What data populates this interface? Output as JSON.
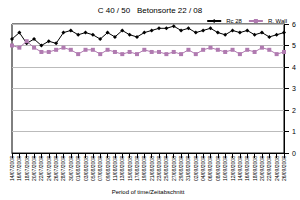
{
  "chart_data": {
    "type": "line",
    "title": "C 40 / 50   Betonsorte 22 / 08",
    "x_label": "Period of time/Zeitabschnitt",
    "categories": [
      "14/07/2008",
      "16/07/2008",
      "18/07/2008",
      "20/07/2008",
      "22/07/2008",
      "24/07/2008",
      "26/07/2008",
      "28/07/2008",
      "30/07/2008",
      "01/08/2008",
      "03/08/2008",
      "05/08/2008",
      "07/08/2008",
      "09/08/2008",
      "11/08/2008",
      "13/08/2008",
      "15/08/2008",
      "17/08/2008",
      "19/08/2008",
      "21/08/2008",
      "23/08/2008",
      "25/08/2008",
      "27/08/2008",
      "29/08/2008",
      "31/08/2008",
      "02/09/2008",
      "04/09/2008",
      "06/09/2008",
      "08/09/2008",
      "10/09/2008",
      "12/09/2008",
      "14/09/2008",
      "16/09/2008",
      "18/09/2008",
      "20/09/2008",
      "22/09/2008",
      "24/09/2008",
      "26/09/2008"
    ],
    "series": [
      {
        "name": "Rc 28",
        "color": "#000000",
        "marker": "diamond",
        "values": [
          5.3,
          5.6,
          5.1,
          5.3,
          5.0,
          5.2,
          5.1,
          5.6,
          5.7,
          5.5,
          5.6,
          5.5,
          5.3,
          5.6,
          5.4,
          5.7,
          5.5,
          5.4,
          5.6,
          5.7,
          5.8,
          5.8,
          5.9,
          5.7,
          5.8,
          5.6,
          5.7,
          5.8,
          5.6,
          5.5,
          5.7,
          5.6,
          5.7,
          5.5,
          5.6,
          5.4,
          5.5,
          5.6
        ]
      },
      {
        "name": "R. Wall",
        "color": "#b07ab0",
        "marker": "square",
        "values": [
          5.0,
          4.9,
          5.2,
          4.9,
          4.7,
          4.7,
          4.8,
          4.9,
          4.8,
          4.6,
          4.8,
          4.8,
          4.6,
          4.8,
          4.7,
          4.6,
          4.7,
          4.6,
          4.8,
          4.7,
          4.7,
          4.6,
          4.7,
          4.6,
          4.8,
          4.6,
          4.8,
          4.9,
          4.8,
          4.7,
          4.8,
          4.6,
          4.8,
          4.7,
          4.9,
          4.8,
          4.6,
          4.7
        ]
      }
    ],
    "ylim": [
      0,
      6
    ],
    "yticks": [
      0,
      1,
      2,
      3,
      4,
      5,
      6
    ],
    "grid": true,
    "legend": "upper right"
  }
}
